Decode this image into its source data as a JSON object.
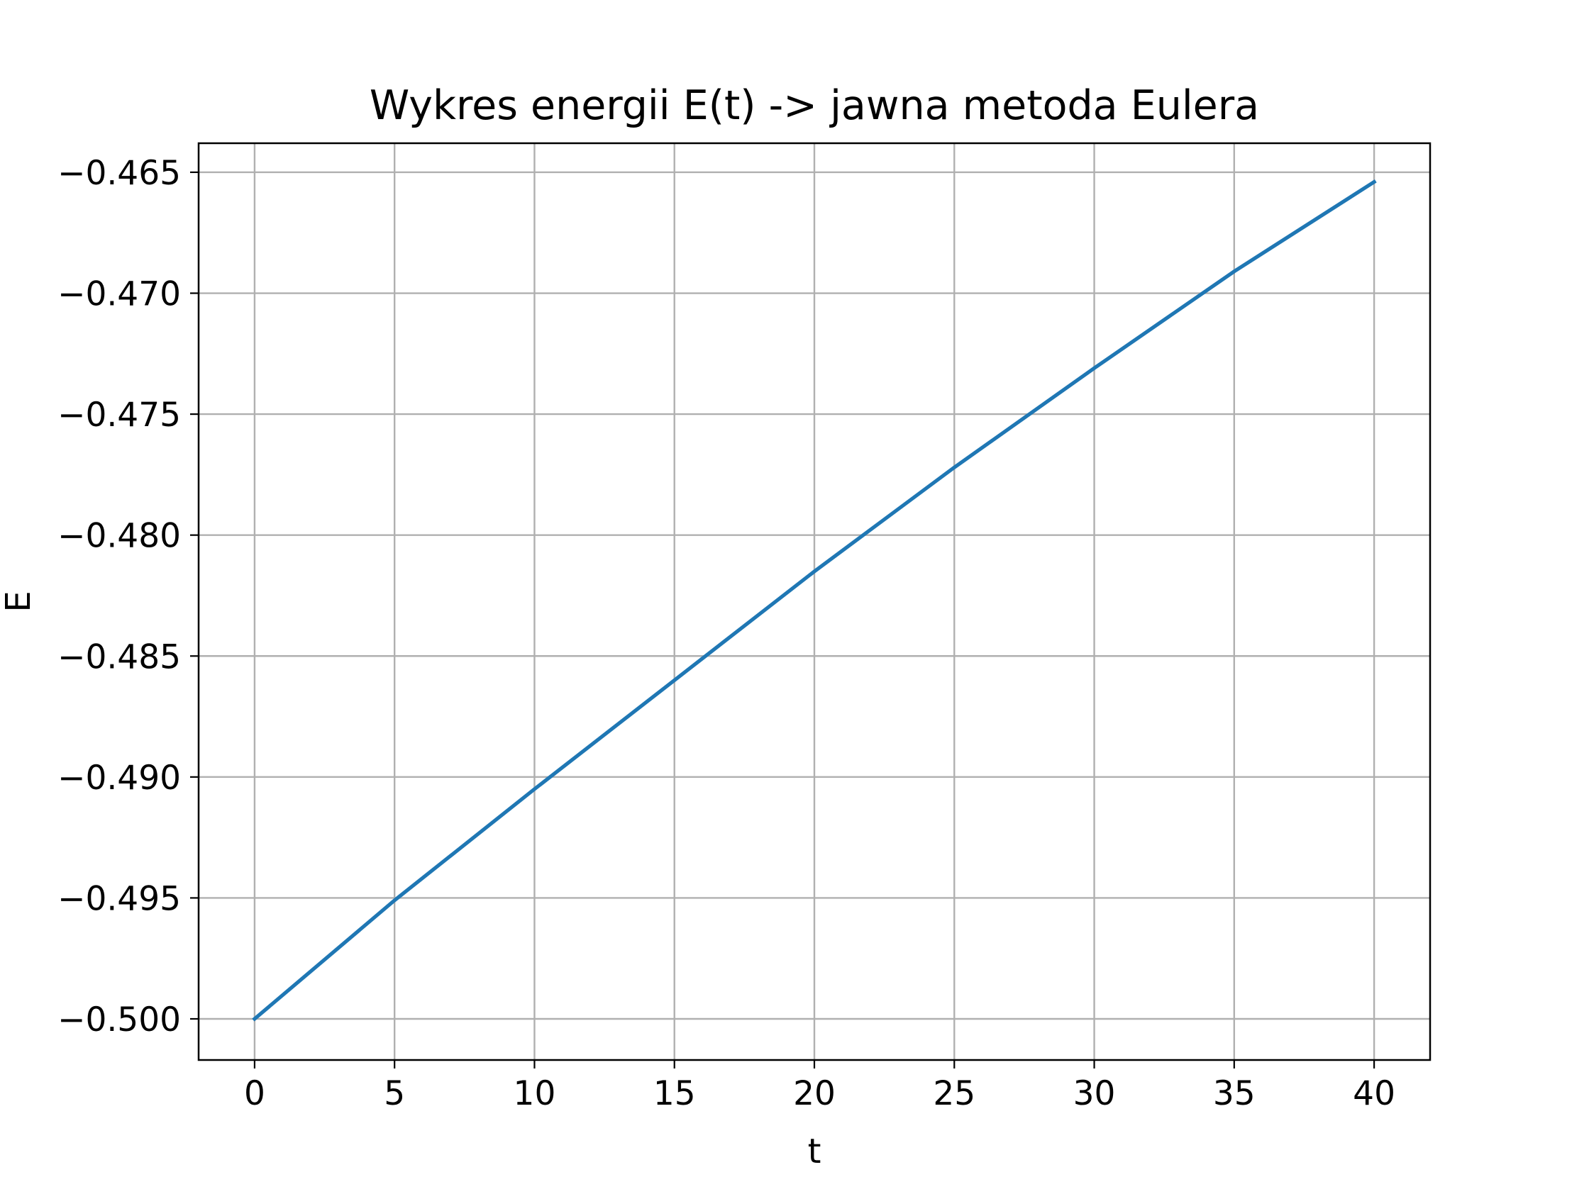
{
  "chart_data": {
    "type": "line",
    "title": "Wykres energii E(t) -> jawna metoda Eulera",
    "xlabel": "t",
    "ylabel": "E",
    "xlim": [
      -2.0,
      42.0
    ],
    "ylim": [
      -0.5017,
      -0.4638
    ],
    "grid": true,
    "xticks": [
      0,
      5,
      10,
      15,
      20,
      25,
      30,
      35,
      40
    ],
    "xtick_labels": [
      "0",
      "5",
      "10",
      "15",
      "20",
      "25",
      "30",
      "35",
      "40"
    ],
    "yticks": [
      -0.5,
      -0.495,
      -0.49,
      -0.485,
      -0.48,
      -0.475,
      -0.47,
      -0.465
    ],
    "ytick_labels": [
      "−0.500",
      "−0.495",
      "−0.490",
      "−0.485",
      "−0.480",
      "−0.475",
      "−0.470",
      "−0.465"
    ],
    "series": [
      {
        "color": "#1f77b4",
        "x": [
          0,
          5,
          10,
          15,
          20,
          25,
          30,
          35,
          40
        ],
        "y": [
          -0.5,
          -0.4951,
          -0.4905,
          -0.486,
          -0.4815,
          -0.4772,
          -0.4731,
          -0.4691,
          -0.4654
        ]
      }
    ]
  }
}
